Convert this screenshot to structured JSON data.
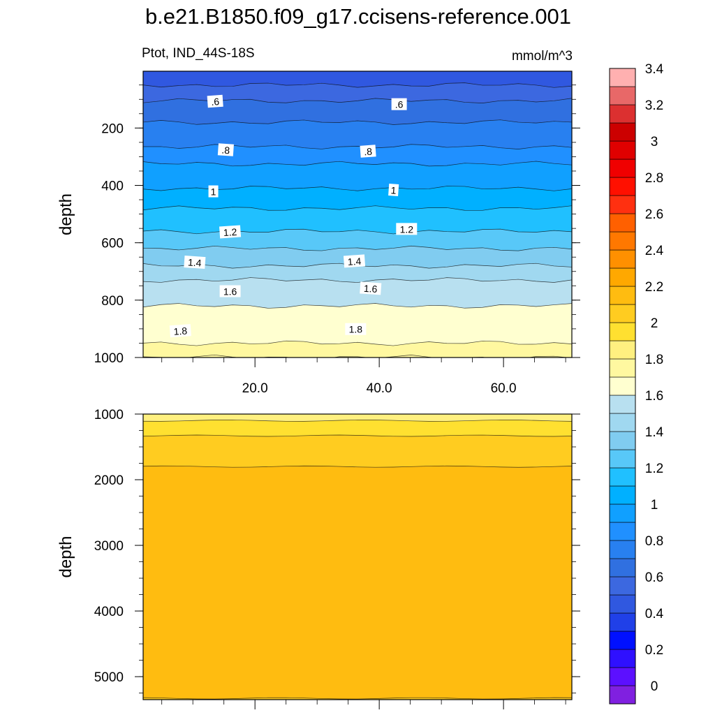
{
  "title": "b.e21.B1850.f09_g17.ccisens-reference.001",
  "panel": {
    "left_label": "Ptot, IND_44S-18S",
    "right_label": "mmol/m^3"
  },
  "chart_data": [
    {
      "type": "contour",
      "panel": "upper",
      "ylabel": "depth",
      "xlabel": "",
      "xlim": [
        2,
        71
      ],
      "ylim": [
        1000,
        2
      ],
      "y_inverted": true,
      "x_ticks": [
        20,
        40,
        60
      ],
      "x_tick_labels": [
        "20.0",
        "40.0",
        "60.0"
      ],
      "y_ticks": [
        200,
        400,
        600,
        800,
        1000
      ],
      "y_tick_labels": [
        "200",
        "400",
        "600",
        "800",
        "1000"
      ],
      "band_boundaries": [
        {
          "level": 0.5,
          "depth": 50
        },
        {
          "level": 0.6,
          "depth": 105
        },
        {
          "level": 0.7,
          "depth": 180
        },
        {
          "level": 0.8,
          "depth": 265
        },
        {
          "level": 0.9,
          "depth": 325
        },
        {
          "level": 1.0,
          "depth": 410
        },
        {
          "level": 1.1,
          "depth": 480
        },
        {
          "level": 1.2,
          "depth": 560
        },
        {
          "level": 1.3,
          "depth": 620
        },
        {
          "level": 1.4,
          "depth": 680
        },
        {
          "level": 1.5,
          "depth": 730
        },
        {
          "level": 1.6,
          "depth": 820
        },
        {
          "level": 1.7,
          "depth": 950
        },
        {
          "level": 1.8,
          "depth": 1000
        }
      ],
      "contour_labels": [
        {
          "text": ".6",
          "x": 13.6,
          "depth": 108
        },
        {
          "text": ".6",
          "x": 43.2,
          "depth": 118
        },
        {
          "text": ".8",
          "x": 15.3,
          "depth": 277
        },
        {
          "text": ".8",
          "x": 38.2,
          "depth": 282
        },
        {
          "text": "1",
          "x": 13.3,
          "depth": 422
        },
        {
          "text": "1",
          "x": 42.3,
          "depth": 417
        },
        {
          "text": "1.2",
          "x": 16.0,
          "depth": 563
        },
        {
          "text": "1.2",
          "x": 44.4,
          "depth": 553
        },
        {
          "text": "1.4",
          "x": 10.3,
          "depth": 669
        },
        {
          "text": "1.4",
          "x": 36.0,
          "depth": 665
        },
        {
          "text": "1.6",
          "x": 16.0,
          "depth": 770
        },
        {
          "text": "1.6",
          "x": 38.6,
          "depth": 760
        },
        {
          "text": "1.8",
          "x": 8.0,
          "depth": 908
        },
        {
          "text": "1.8",
          "x": 36.2,
          "depth": 902
        }
      ]
    },
    {
      "type": "contour",
      "panel": "lower",
      "ylabel": "depth",
      "xlabel": "",
      "xlim": [
        2,
        71
      ],
      "ylim": [
        1000,
        5350
      ],
      "y_inverted": true,
      "y_ticks": [
        1000,
        2000,
        3000,
        4000,
        5000
      ],
      "y_tick_labels": [
        "1000",
        "2000",
        "3000",
        "4000",
        "5000"
      ],
      "band_boundaries": [
        {
          "level": 1.9,
          "depth": 1100
        },
        {
          "level": 2.0,
          "depth": 1330
        },
        {
          "level": 2.1,
          "depth": 1800
        },
        {
          "level": 2.0,
          "depth": 5330
        }
      ]
    }
  ],
  "colorbar": {
    "colors": [
      "#8020e0",
      "#5c10ff",
      "#2f10ff",
      "#0010ff",
      "#2040e8",
      "#3058e0",
      "#3c68e0",
      "#3070e0",
      "#2880f0",
      "#2090ff",
      "#10a0ff",
      "#00b0ff",
      "#20c0ff",
      "#58c8f8",
      "#80ccf0",
      "#a0d8f0",
      "#b8e0f0",
      "#ffffd0",
      "#fff8a0",
      "#fff080",
      "#ffe030",
      "#ffcc20",
      "#ffbc10",
      "#ffa800",
      "#ff9000",
      "#ff7800",
      "#ff6000",
      "#ff3010",
      "#ff1000",
      "#f00000",
      "#e00000",
      "#cc0000",
      "#dc3030",
      "#e86868",
      "#ffb0b0"
    ],
    "tick_labels": [
      "0",
      "0.2",
      "0.4",
      "0.6",
      "0.8",
      "1",
      "1.2",
      "1.4",
      "1.6",
      "1.8",
      "2",
      "2.2",
      "2.4",
      "2.6",
      "2.8",
      "3",
      "3.2",
      "3.4"
    ]
  }
}
